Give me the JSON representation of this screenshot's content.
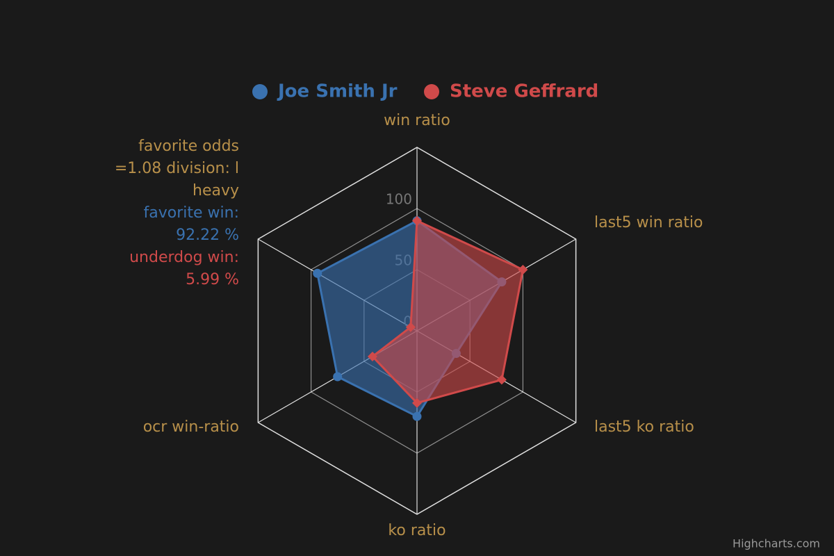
{
  "chart_data": {
    "type": "radar",
    "background": "#1a1a1a",
    "label_color": "#b8904a",
    "grid_color": "#e0e0e0",
    "categories": [
      "win ratio",
      "last5 win ratio",
      "last5 ko ratio",
      "ko ratio",
      "ocr win-ratio",
      {
        "parts": [
          {
            "text": "favorite odds =1.08 division: l heavy",
            "color": "#b8904a"
          },
          {
            "text": "favorite win: 92.22 %",
            "color": "#3a72b0"
          },
          {
            "text": "underdog win: 5.99 %",
            "color": "#d04a4a"
          }
        ]
      }
    ],
    "ylim": [
      0,
      150
    ],
    "yticks": [
      0,
      50,
      100
    ],
    "series": [
      {
        "name": "Joe Smith Jr",
        "color": "#3a72b0",
        "marker": "circle",
        "values": [
          90,
          80,
          37,
          70,
          75,
          94
        ]
      },
      {
        "name": "Steve Geffrard",
        "color": "#d04a4a",
        "marker": "diamond",
        "values": [
          90,
          100,
          80,
          59,
          42,
          6
        ]
      }
    ],
    "credits": "Highcharts.com"
  }
}
